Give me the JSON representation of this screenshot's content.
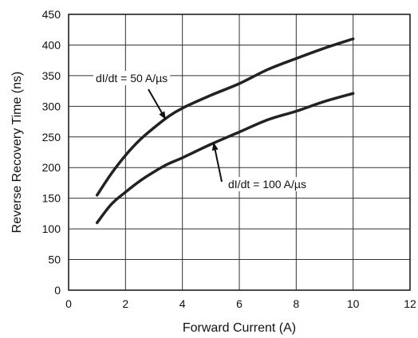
{
  "chart_data": {
    "type": "line",
    "title": "",
    "xlabel": "Forward Current (A)",
    "ylabel": "Reverse Recovery Time (ns)",
    "xlim": [
      0,
      12
    ],
    "ylim": [
      0,
      450
    ],
    "xticks": [
      0,
      2,
      4,
      6,
      8,
      10,
      12
    ],
    "yticks": [
      0,
      50,
      100,
      150,
      200,
      250,
      300,
      350,
      400,
      450
    ],
    "grid": true,
    "legend": "none",
    "series": [
      {
        "name": "dI/dt = 50 A/µs",
        "color": "#222222",
        "x": [
          1,
          1.5,
          2,
          2.5,
          3,
          3.5,
          4,
          5,
          6,
          7,
          8,
          9,
          10
        ],
        "y": [
          155,
          190,
          220,
          245,
          265,
          283,
          297,
          318,
          337,
          360,
          378,
          395,
          410
        ]
      },
      {
        "name": "dI/dt = 100 A/µs",
        "color": "#222222",
        "x": [
          1,
          1.5,
          2,
          2.5,
          3,
          3.5,
          4,
          5,
          6,
          7,
          8,
          9,
          10
        ],
        "y": [
          110,
          140,
          160,
          178,
          193,
          206,
          216,
          238,
          258,
          278,
          292,
          308,
          321
        ]
      }
    ],
    "annotations": [
      {
        "text": "dI/dt = 50 A/µs",
        "series": 0,
        "at_x": 3.4
      },
      {
        "text": "dI/dt = 100 A/µs",
        "series": 1,
        "at_x": 5.1
      }
    ]
  }
}
